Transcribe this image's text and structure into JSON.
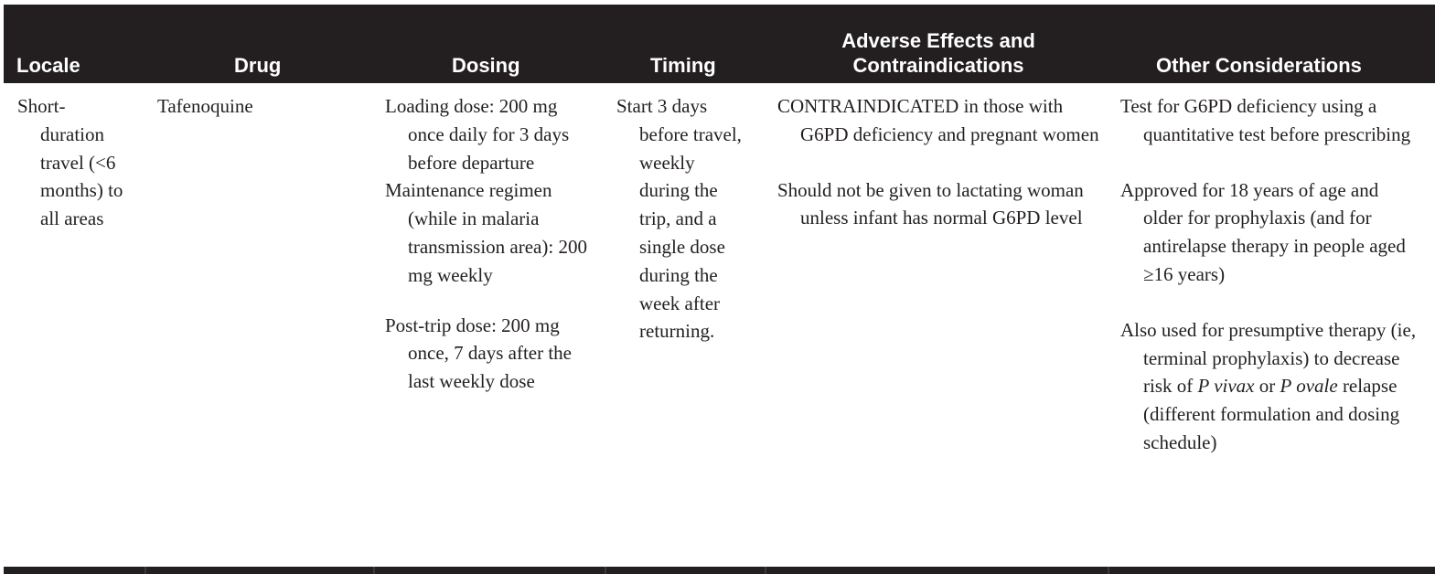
{
  "table": {
    "headers": {
      "locale": "Locale",
      "drug": "Drug",
      "dosing": "Dosing",
      "timing": "Timing",
      "adverse_line1": "Adverse Effects and",
      "adverse_line2": "Contraindications",
      "other": "Other Considerations"
    },
    "row": {
      "locale": "Short-duration travel (<6 months) to all areas",
      "drug": "Tafenoquine",
      "dosing": {
        "loading": "Loading dose: 200 mg once daily for 3 days before departure",
        "maintenance": "Maintenance regimen (while in malaria transmission area): 200 mg weekly",
        "post_trip": "Post-trip dose: 200 mg once, 7 days after the last weekly dose"
      },
      "timing": "Start 3 days before travel, weekly during the trip, and a single dose during the week after returning.",
      "adverse": {
        "contraindication": "CONTRAINDICATED in those with G6PD deficiency and pregnant women",
        "lactation": "Should not be given to lactating woman unless infant has normal G6PD level"
      },
      "other": {
        "test": "Test for G6PD deficiency using a quantitative test before prescribing",
        "approved": "Approved for 18 years of age and older for prophylaxis (and for antirelapse therapy in people aged ≥16 years)",
        "also_prefix": "Also used for presumptive therapy (ie, terminal prophylaxis) to decrease risk of ",
        "p_vivax": "P vivax",
        "or_text": " or ",
        "p_ovale": "P ovale",
        "also_suffix": " relapse (different formulation and dosing schedule)"
      }
    }
  }
}
